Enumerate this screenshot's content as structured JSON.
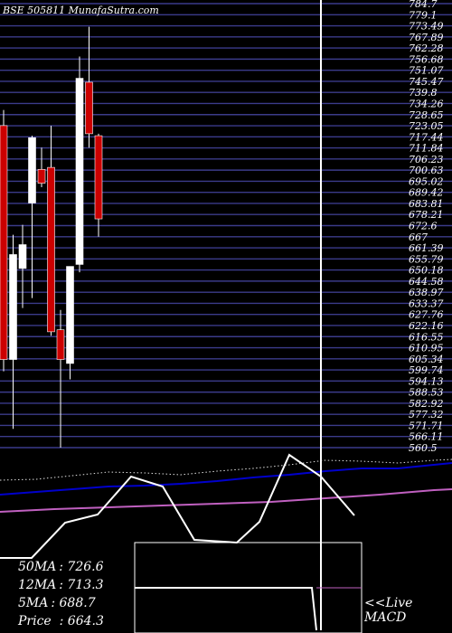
{
  "chart_data": {
    "type": "candlestick",
    "title": "BSE 505811 MunafaSutra.com",
    "colors": {
      "background": "#000000",
      "gridline": "#3b3b8a",
      "up_candle": "#ffffff",
      "down_candle": "#cc0000",
      "ma_blue": "#0000cc",
      "ma_magenta": "#c060c0",
      "white_line": "#ffffff"
    },
    "y_ticks": [
      "784.7",
      "779.1",
      "773.49",
      "767.89",
      "762.28",
      "756.68",
      "751.07",
      "745.47",
      "739.8",
      "734.26",
      "728.65",
      "723.05",
      "717.44",
      "711.84",
      "706.23",
      "700.63",
      "695.02",
      "689.42",
      "683.81",
      "678.21",
      "672.6",
      "667",
      "661.39",
      "655.79",
      "650.18",
      "644.58",
      "638.97",
      "633.37",
      "627.76",
      "622.16",
      "616.55",
      "610.95",
      "605.34",
      "599.74",
      "594.13",
      "588.53",
      "582.92",
      "577.32",
      "571.71",
      "566.11",
      "560.5"
    ],
    "candles": [
      {
        "open": 723.1,
        "high": 731.0,
        "low": 599.0,
        "close": 605.0
      },
      {
        "open": 605.0,
        "high": 668.0,
        "low": 570.0,
        "close": 658.0
      },
      {
        "open": 651.0,
        "high": 673.0,
        "low": 631.0,
        "close": 663.0
      },
      {
        "open": 684.0,
        "high": 718.0,
        "low": 636.0,
        "close": 717.0
      },
      {
        "open": 701.0,
        "high": 712.0,
        "low": 692.0,
        "close": 694.0
      },
      {
        "open": 702.0,
        "high": 723.0,
        "low": 617.0,
        "close": 619.0
      },
      {
        "open": 620.0,
        "high": 630.0,
        "low": 560.5,
        "close": 605.0
      },
      {
        "open": 603.0,
        "high": 652.0,
        "low": 595.0,
        "close": 652.0
      },
      {
        "open": 653.0,
        "high": 758.0,
        "low": 649.0,
        "close": 747.0
      },
      {
        "open": 745.0,
        "high": 773.0,
        "low": 712.0,
        "close": 719.0
      },
      {
        "open": 718.0,
        "high": 719.0,
        "low": 667.0,
        "close": 676.0
      }
    ],
    "ma_values": {
      "50MA": 726.6,
      "12MA": 713.3,
      "5MA": 688.7,
      "Price": 664.3
    },
    "info_lines": [
      {
        "label": "50MA",
        "value": ": 726.6"
      },
      {
        "label": "12MA",
        "value": ": 713.3"
      },
      {
        "label": "5MA",
        "value": ": 688.7"
      },
      {
        "label": "Price",
        "value": "  : 664.3"
      }
    ],
    "macd_label": "<<Live",
    "macd_title": "MACD"
  }
}
